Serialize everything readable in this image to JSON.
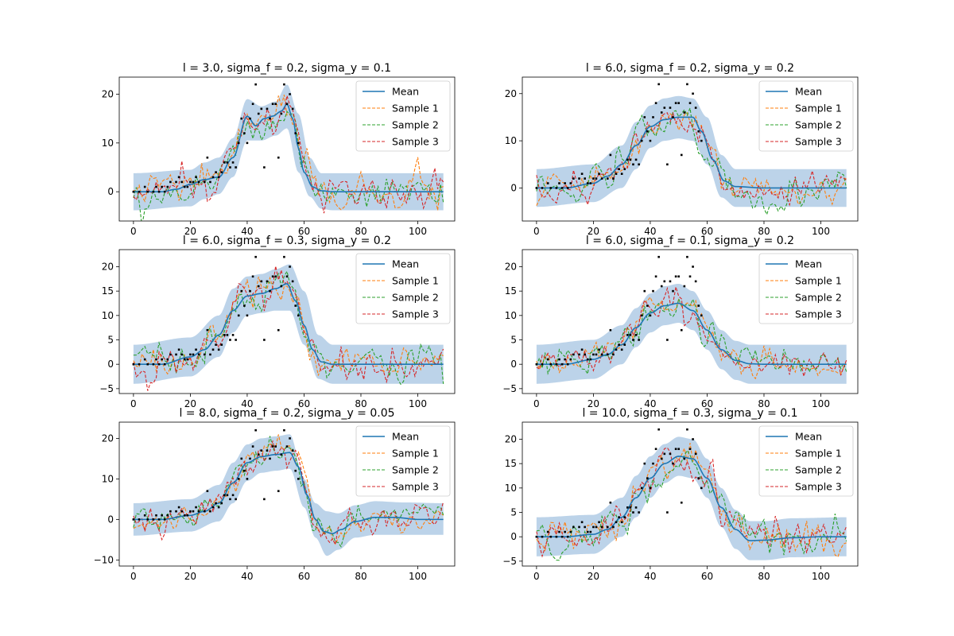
{
  "colors": {
    "mean": "#1f77b4",
    "sample1": "#ff7f0e",
    "sample2": "#2ca02c",
    "sample3": "#d62728",
    "band": "#bcd3e9",
    "points": "#000000"
  },
  "legend_labels": [
    "Mean",
    "Sample 1",
    "Sample 2",
    "Sample 3"
  ],
  "chart_data": [
    {
      "type": "line",
      "title": "l = 3.0, sigma_f = 0.2, sigma_y = 0.1",
      "xlim": [
        -5,
        113
      ],
      "ylim": [
        -6,
        23.5
      ],
      "xticks": [
        0,
        20,
        40,
        60,
        80,
        100
      ],
      "yticks": [
        0,
        10,
        20
      ],
      "length_scale": 3.0,
      "noise_sd": 2.0,
      "band_halfwidth": 3.8,
      "mean_x": [
        0,
        10,
        15,
        20,
        25,
        30,
        35,
        40,
        43,
        46,
        49,
        52,
        54,
        56,
        58,
        60,
        63,
        66,
        70,
        80,
        90,
        100,
        109
      ],
      "mean_y": [
        0,
        0,
        0.5,
        1.5,
        2.5,
        3,
        7,
        15.5,
        13.5,
        15,
        15.5,
        16.5,
        18,
        15,
        9,
        4,
        1,
        0.2,
        0,
        0,
        0,
        0,
        0
      ],
      "band_lower_x": [
        0,
        20,
        25,
        30,
        35,
        40,
        45,
        50,
        54,
        58,
        62,
        66,
        70,
        109
      ],
      "band_lower_y": [
        -3.8,
        -3,
        -1.5,
        -0.5,
        3,
        10.5,
        10.5,
        11.5,
        13,
        4,
        -1,
        -3.5,
        -3.8,
        -3.8
      ],
      "band_upper_x": [
        0,
        20,
        25,
        30,
        35,
        40,
        45,
        50,
        54,
        58,
        62,
        66,
        70,
        109
      ],
      "band_upper_y": [
        3.8,
        4.5,
        6,
        7,
        11,
        19,
        17.5,
        18.5,
        22,
        16,
        7,
        3.8,
        3.8,
        3.8
      ],
      "points_x": [
        0,
        2,
        4,
        5,
        7,
        8,
        9,
        10,
        11,
        12,
        13,
        15,
        16,
        17,
        18,
        19,
        20,
        21,
        22,
        23,
        25,
        26,
        27,
        28,
        29,
        30,
        31,
        32,
        33,
        34,
        35,
        36,
        37,
        38,
        39,
        40,
        41,
        42,
        43,
        44,
        45,
        46,
        47,
        48,
        49,
        50,
        51,
        52,
        53,
        54,
        55,
        56,
        57,
        58
      ],
      "points_y": [
        0,
        0,
        1,
        0,
        0,
        1,
        0,
        1,
        0,
        1,
        2,
        2,
        3,
        2,
        1,
        1,
        2,
        2,
        3,
        2,
        2,
        7,
        2,
        3,
        4,
        3,
        4,
        6,
        6,
        5,
        6,
        5,
        10,
        15,
        12,
        10,
        15,
        18,
        22,
        16,
        17,
        5,
        17,
        15,
        18,
        18,
        7,
        16,
        22,
        18,
        20,
        17,
        12,
        10
      ]
    },
    {
      "type": "line",
      "title": "l = 6.0, sigma_f = 0.2, sigma_y = 0.2",
      "xlim": [
        -5,
        113
      ],
      "ylim": [
        -7,
        23.5
      ],
      "xticks": [
        0,
        20,
        40,
        60,
        80,
        100
      ],
      "yticks": [
        0,
        10,
        20
      ],
      "length_scale": 6.0,
      "noise_sd": 1.8,
      "band_halfwidth": 4,
      "mean_x": [
        0,
        10,
        20,
        25,
        30,
        35,
        40,
        45,
        50,
        55,
        58,
        62,
        66,
        70,
        80,
        109
      ],
      "mean_y": [
        0,
        0,
        1,
        2.5,
        5,
        9,
        13,
        14.5,
        15,
        15,
        12,
        6,
        1.5,
        0.3,
        0,
        0
      ],
      "band_lower_x": [
        0,
        20,
        30,
        35,
        40,
        45,
        50,
        55,
        60,
        65,
        70,
        109
      ],
      "band_lower_y": [
        -4,
        -3,
        0,
        4,
        8.5,
        10,
        10.5,
        10,
        5,
        -2,
        -4,
        -4
      ],
      "band_upper_x": [
        0,
        20,
        30,
        35,
        40,
        45,
        50,
        55,
        60,
        65,
        70,
        109
      ],
      "band_upper_y": [
        4,
        5,
        9,
        14,
        17.5,
        19,
        19.5,
        19,
        15,
        7,
        4,
        4
      ],
      "points_x": [
        0,
        2,
        4,
        5,
        7,
        8,
        9,
        10,
        11,
        12,
        13,
        15,
        16,
        17,
        18,
        19,
        20,
        21,
        22,
        23,
        25,
        26,
        27,
        28,
        29,
        30,
        31,
        32,
        33,
        34,
        35,
        36,
        37,
        38,
        39,
        40,
        41,
        42,
        43,
        44,
        45,
        46,
        47,
        48,
        49,
        50,
        51,
        52,
        53,
        54,
        55,
        56,
        57,
        58
      ],
      "points_y": [
        0,
        0,
        1,
        0,
        0,
        1,
        0,
        1,
        0,
        1,
        2,
        2,
        3,
        2,
        1,
        1,
        2,
        2,
        3,
        2,
        2,
        7,
        2,
        3,
        4,
        3,
        4,
        6,
        6,
        5,
        6,
        5,
        10,
        15,
        12,
        10,
        15,
        18,
        22,
        16,
        17,
        5,
        17,
        15,
        18,
        18,
        7,
        16,
        22,
        18,
        20,
        17,
        12,
        10
      ]
    },
    {
      "type": "line",
      "title": "l = 6.0, sigma_f = 0.3, sigma_y = 0.2",
      "xlim": [
        -5,
        113
      ],
      "ylim": [
        -6,
        23.5
      ],
      "xticks": [
        0,
        20,
        40,
        60,
        80,
        100
      ],
      "yticks": [
        -5,
        0,
        5,
        10,
        15,
        20
      ],
      "length_scale": 6.0,
      "noise_sd": 1.8,
      "band_halfwidth": 4,
      "mean_x": [
        0,
        10,
        20,
        25,
        30,
        35,
        40,
        45,
        50,
        54,
        57,
        60,
        63,
        66,
        70,
        109
      ],
      "mean_y": [
        0,
        0,
        1.5,
        3,
        6,
        11,
        14,
        14.5,
        15.5,
        16.5,
        13,
        8,
        3,
        0.5,
        0,
        0
      ],
      "band_lower_x": [
        0,
        20,
        30,
        35,
        40,
        45,
        50,
        55,
        60,
        65,
        70,
        109
      ],
      "band_lower_y": [
        -4,
        -2.5,
        1.5,
        6.5,
        10,
        10.5,
        11,
        11,
        4,
        -3,
        -4,
        -4
      ],
      "band_upper_x": [
        0,
        20,
        30,
        35,
        40,
        45,
        50,
        55,
        60,
        65,
        70,
        109
      ],
      "band_upper_y": [
        4,
        5.5,
        10,
        15.5,
        18,
        18.5,
        19.5,
        20.5,
        15,
        6,
        4,
        4
      ],
      "points_x": [
        0,
        2,
        4,
        5,
        7,
        8,
        9,
        10,
        11,
        12,
        13,
        15,
        16,
        17,
        18,
        19,
        20,
        21,
        22,
        23,
        25,
        26,
        27,
        28,
        29,
        30,
        31,
        32,
        33,
        34,
        35,
        36,
        37,
        38,
        39,
        40,
        41,
        42,
        43,
        44,
        45,
        46,
        47,
        48,
        49,
        50,
        51,
        52,
        53,
        54,
        55,
        56,
        57,
        58
      ],
      "points_y": [
        0,
        0,
        1,
        0,
        0,
        1,
        0,
        1,
        0,
        1,
        2,
        2,
        3,
        2,
        1,
        1,
        2,
        2,
        3,
        2,
        2,
        7,
        2,
        3,
        4,
        3,
        4,
        6,
        6,
        5,
        6,
        5,
        10,
        15,
        12,
        10,
        15,
        18,
        22,
        16,
        17,
        5,
        17,
        15,
        18,
        18,
        7,
        16,
        22,
        18,
        20,
        17,
        12,
        10
      ]
    },
    {
      "type": "line",
      "title": "l = 6.0, sigma_f = 0.1, sigma_y = 0.2",
      "xlim": [
        -5,
        113
      ],
      "ylim": [
        -6,
        23.5
      ],
      "xticks": [
        0,
        20,
        40,
        60,
        80,
        100
      ],
      "yticks": [
        -5,
        0,
        5,
        10,
        15,
        20
      ],
      "length_scale": 6.0,
      "noise_sd": 1.6,
      "band_halfwidth": 4,
      "mean_x": [
        0,
        10,
        20,
        25,
        30,
        35,
        40,
        45,
        50,
        55,
        60,
        65,
        70,
        75,
        80,
        109
      ],
      "mean_y": [
        0,
        0,
        1,
        2,
        4,
        7.5,
        10.5,
        12,
        12.5,
        11,
        7,
        3,
        0.8,
        0.1,
        0,
        0
      ],
      "band_lower_x": [
        0,
        20,
        30,
        35,
        40,
        45,
        50,
        55,
        60,
        65,
        70,
        75,
        109
      ],
      "band_lower_y": [
        -4,
        -3,
        0,
        3.5,
        6.5,
        8,
        8.5,
        7,
        3,
        -1,
        -3.2,
        -4,
        -4
      ],
      "band_upper_x": [
        0,
        20,
        30,
        35,
        40,
        45,
        50,
        55,
        60,
        65,
        70,
        75,
        109
      ],
      "band_upper_y": [
        4,
        5,
        8,
        11.5,
        14.5,
        16,
        16.5,
        15,
        11,
        7,
        4.8,
        4,
        4
      ],
      "points_x": [
        0,
        2,
        4,
        5,
        7,
        8,
        9,
        10,
        11,
        12,
        13,
        15,
        16,
        17,
        18,
        19,
        20,
        21,
        22,
        23,
        25,
        26,
        27,
        28,
        29,
        30,
        31,
        32,
        33,
        34,
        35,
        36,
        37,
        38,
        39,
        40,
        41,
        42,
        43,
        44,
        45,
        46,
        47,
        48,
        49,
        50,
        51,
        52,
        53,
        54,
        55,
        56,
        57,
        58
      ],
      "points_y": [
        0,
        0,
        1,
        0,
        0,
        1,
        0,
        1,
        0,
        1,
        2,
        2,
        3,
        2,
        1,
        1,
        2,
        2,
        3,
        2,
        2,
        7,
        2,
        3,
        4,
        3,
        4,
        6,
        6,
        5,
        6,
        5,
        10,
        15,
        12,
        10,
        15,
        18,
        22,
        16,
        17,
        5,
        17,
        15,
        18,
        18,
        7,
        16,
        22,
        18,
        20,
        17,
        12,
        10
      ]
    },
    {
      "type": "line",
      "title": "l = 8.0, sigma_f = 0.2, sigma_y = 0.05",
      "xlim": [
        -5,
        113
      ],
      "ylim": [
        -11.5,
        24
      ],
      "xticks": [
        0,
        20,
        40,
        60,
        80,
        100
      ],
      "yticks": [
        -10,
        0,
        10,
        20
      ],
      "length_scale": 8.0,
      "noise_sd": 1.8,
      "band_halfwidth": 4,
      "mean_x": [
        0,
        10,
        20,
        25,
        30,
        35,
        40,
        45,
        50,
        55,
        58,
        61,
        64,
        67,
        70,
        73,
        78,
        85,
        92,
        100,
        109
      ],
      "mean_y": [
        0,
        0,
        1,
        2,
        4,
        9,
        14,
        15.5,
        16,
        16.5,
        13,
        6,
        0,
        -3,
        -3.5,
        -2.5,
        -0.5,
        0.5,
        0.5,
        0,
        0
      ],
      "band_lower_x": [
        0,
        20,
        30,
        35,
        40,
        45,
        50,
        55,
        60,
        64,
        68,
        72,
        78,
        85,
        95,
        109
      ],
      "band_lower_y": [
        -4,
        -3,
        -0.5,
        4,
        9.5,
        11.5,
        12,
        12.5,
        3,
        -4.5,
        -9,
        -7.5,
        -4.5,
        -3.8,
        -3.8,
        -3.8
      ],
      "band_upper_x": [
        0,
        20,
        30,
        35,
        40,
        45,
        50,
        55,
        60,
        64,
        68,
        72,
        78,
        85,
        95,
        109
      ],
      "band_upper_y": [
        4,
        5,
        8.5,
        14,
        18.5,
        20,
        20.5,
        21,
        10,
        4,
        2,
        1.5,
        3.5,
        4.5,
        4.2,
        4
      ],
      "points_x": [
        0,
        2,
        4,
        5,
        7,
        8,
        9,
        10,
        11,
        12,
        13,
        15,
        16,
        17,
        18,
        19,
        20,
        21,
        22,
        23,
        25,
        26,
        27,
        28,
        29,
        30,
        31,
        32,
        33,
        34,
        35,
        36,
        37,
        38,
        39,
        40,
        41,
        42,
        43,
        44,
        45,
        46,
        47,
        48,
        49,
        50,
        51,
        52,
        53,
        54,
        55,
        56,
        57,
        58
      ],
      "points_y": [
        0,
        0,
        1,
        0,
        0,
        1,
        0,
        1,
        0,
        1,
        2,
        2,
        3,
        2,
        1,
        1,
        2,
        2,
        3,
        2,
        2,
        7,
        2,
        3,
        4,
        3,
        4,
        6,
        6,
        5,
        6,
        5,
        10,
        15,
        12,
        10,
        15,
        18,
        22,
        16,
        17,
        5,
        17,
        15,
        18,
        18,
        7,
        16,
        22,
        18,
        20,
        17,
        12,
        10
      ]
    },
    {
      "type": "line",
      "title": "l = 10.0, sigma_f = 0.3, sigma_y = 0.1",
      "xlim": [
        -5,
        113
      ],
      "ylim": [
        -6,
        23.5
      ],
      "xticks": [
        0,
        20,
        40,
        60,
        80,
        100
      ],
      "yticks": [
        -5,
        0,
        5,
        10,
        15,
        20
      ],
      "length_scale": 10.0,
      "noise_sd": 1.8,
      "band_halfwidth": 4,
      "mean_x": [
        0,
        10,
        20,
        25,
        30,
        35,
        40,
        45,
        50,
        55,
        60,
        65,
        70,
        75,
        80,
        90,
        100,
        109
      ],
      "mean_y": [
        0,
        0,
        0.5,
        1.5,
        4,
        8,
        12,
        15,
        16.5,
        16,
        12,
        6,
        1.5,
        -0.8,
        -0.7,
        -0.2,
        0,
        0
      ],
      "band_lower_x": [
        0,
        20,
        30,
        35,
        40,
        45,
        50,
        55,
        60,
        65,
        70,
        75,
        80,
        90,
        109
      ],
      "band_lower_y": [
        -4,
        -3.5,
        0,
        4,
        8,
        11,
        12.5,
        12,
        8,
        2,
        -2.5,
        -4.8,
        -4.8,
        -4.2,
        -4
      ],
      "band_upper_x": [
        0,
        20,
        30,
        35,
        40,
        45,
        50,
        55,
        60,
        65,
        70,
        75,
        80,
        90,
        109
      ],
      "band_upper_y": [
        4,
        4.5,
        8,
        12.5,
        16.5,
        19,
        20.5,
        20,
        16,
        10,
        5.5,
        3.2,
        3.2,
        3.8,
        4
      ],
      "points_x": [
        0,
        2,
        4,
        5,
        7,
        8,
        9,
        10,
        11,
        12,
        13,
        15,
        16,
        17,
        18,
        19,
        20,
        21,
        22,
        23,
        25,
        26,
        27,
        28,
        29,
        30,
        31,
        32,
        33,
        34,
        35,
        36,
        37,
        38,
        39,
        40,
        41,
        42,
        43,
        44,
        45,
        46,
        47,
        48,
        49,
        50,
        51,
        52,
        53,
        54,
        55,
        56,
        57,
        58
      ],
      "points_y": [
        0,
        0,
        1,
        0,
        0,
        1,
        0,
        1,
        0,
        1,
        2,
        2,
        3,
        2,
        1,
        1,
        2,
        2,
        3,
        2,
        2,
        7,
        2,
        3,
        4,
        3,
        4,
        6,
        6,
        5,
        6,
        5,
        10,
        15,
        12,
        10,
        15,
        18,
        22,
        16,
        17,
        5,
        17,
        15,
        18,
        18,
        7,
        16,
        22,
        18,
        20,
        17,
        12,
        10
      ]
    }
  ]
}
